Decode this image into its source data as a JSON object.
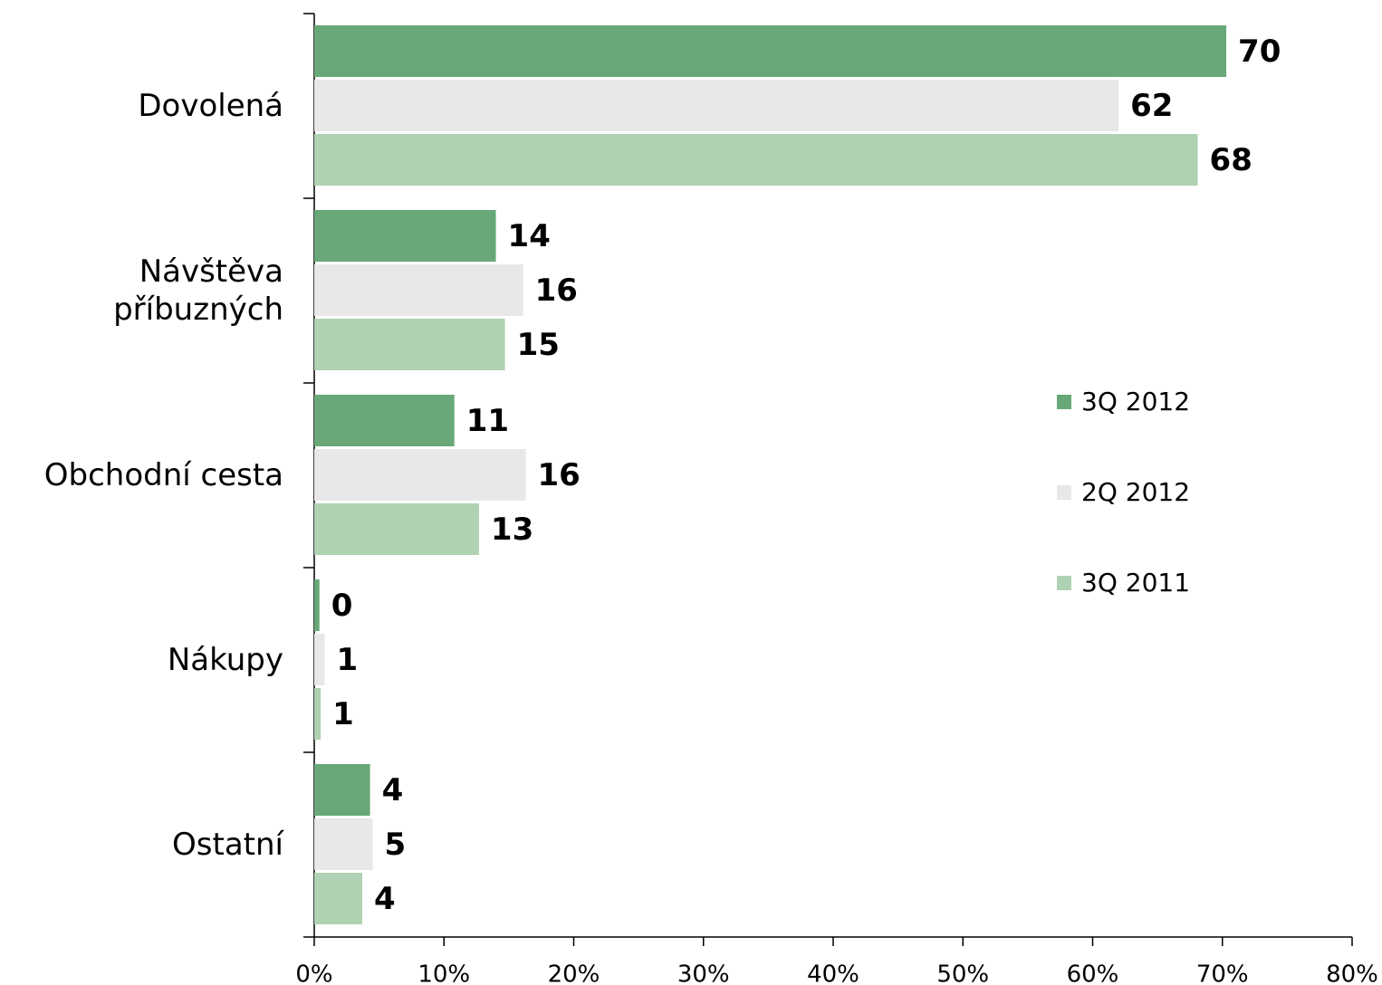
{
  "chart_data": {
    "type": "bar",
    "orientation": "horizontal",
    "categories": [
      "Dovolená",
      "Návštěva příbuzných",
      "Obchodní cesta",
      "Nákupy",
      "Ostatní"
    ],
    "series": [
      {
        "name": "3Q 2012",
        "color": "#68a878",
        "values": [
          70.3,
          14.0,
          10.8,
          0.4,
          4.3
        ],
        "value_labels": [
          "70",
          "14",
          "11",
          "0",
          "4"
        ]
      },
      {
        "name": "2Q 2012",
        "color": "#e8e8e8",
        "values": [
          62.0,
          16.1,
          16.3,
          0.8,
          4.5
        ],
        "value_labels": [
          "62",
          "16",
          "16",
          "1",
          "5"
        ]
      },
      {
        "name": "3Q 2011",
        "color": "#aed2b2",
        "values": [
          68.1,
          14.7,
          12.7,
          0.5,
          3.7
        ],
        "value_labels": [
          "68",
          "15",
          "13",
          "1",
          "4"
        ]
      }
    ],
    "xlim": [
      0,
      80
    ],
    "xticks": [
      {
        "value": 0,
        "label": "0%"
      },
      {
        "value": 10,
        "label": "10%"
      },
      {
        "value": 20,
        "label": "20%"
      },
      {
        "value": 30,
        "label": "30%"
      },
      {
        "value": 40,
        "label": "40%"
      },
      {
        "value": 50,
        "label": "50%"
      },
      {
        "value": 60,
        "label": "60%"
      },
      {
        "value": 70,
        "label": "70%"
      },
      {
        "value": 80,
        "label": "80%"
      }
    ],
    "legend": "right"
  }
}
